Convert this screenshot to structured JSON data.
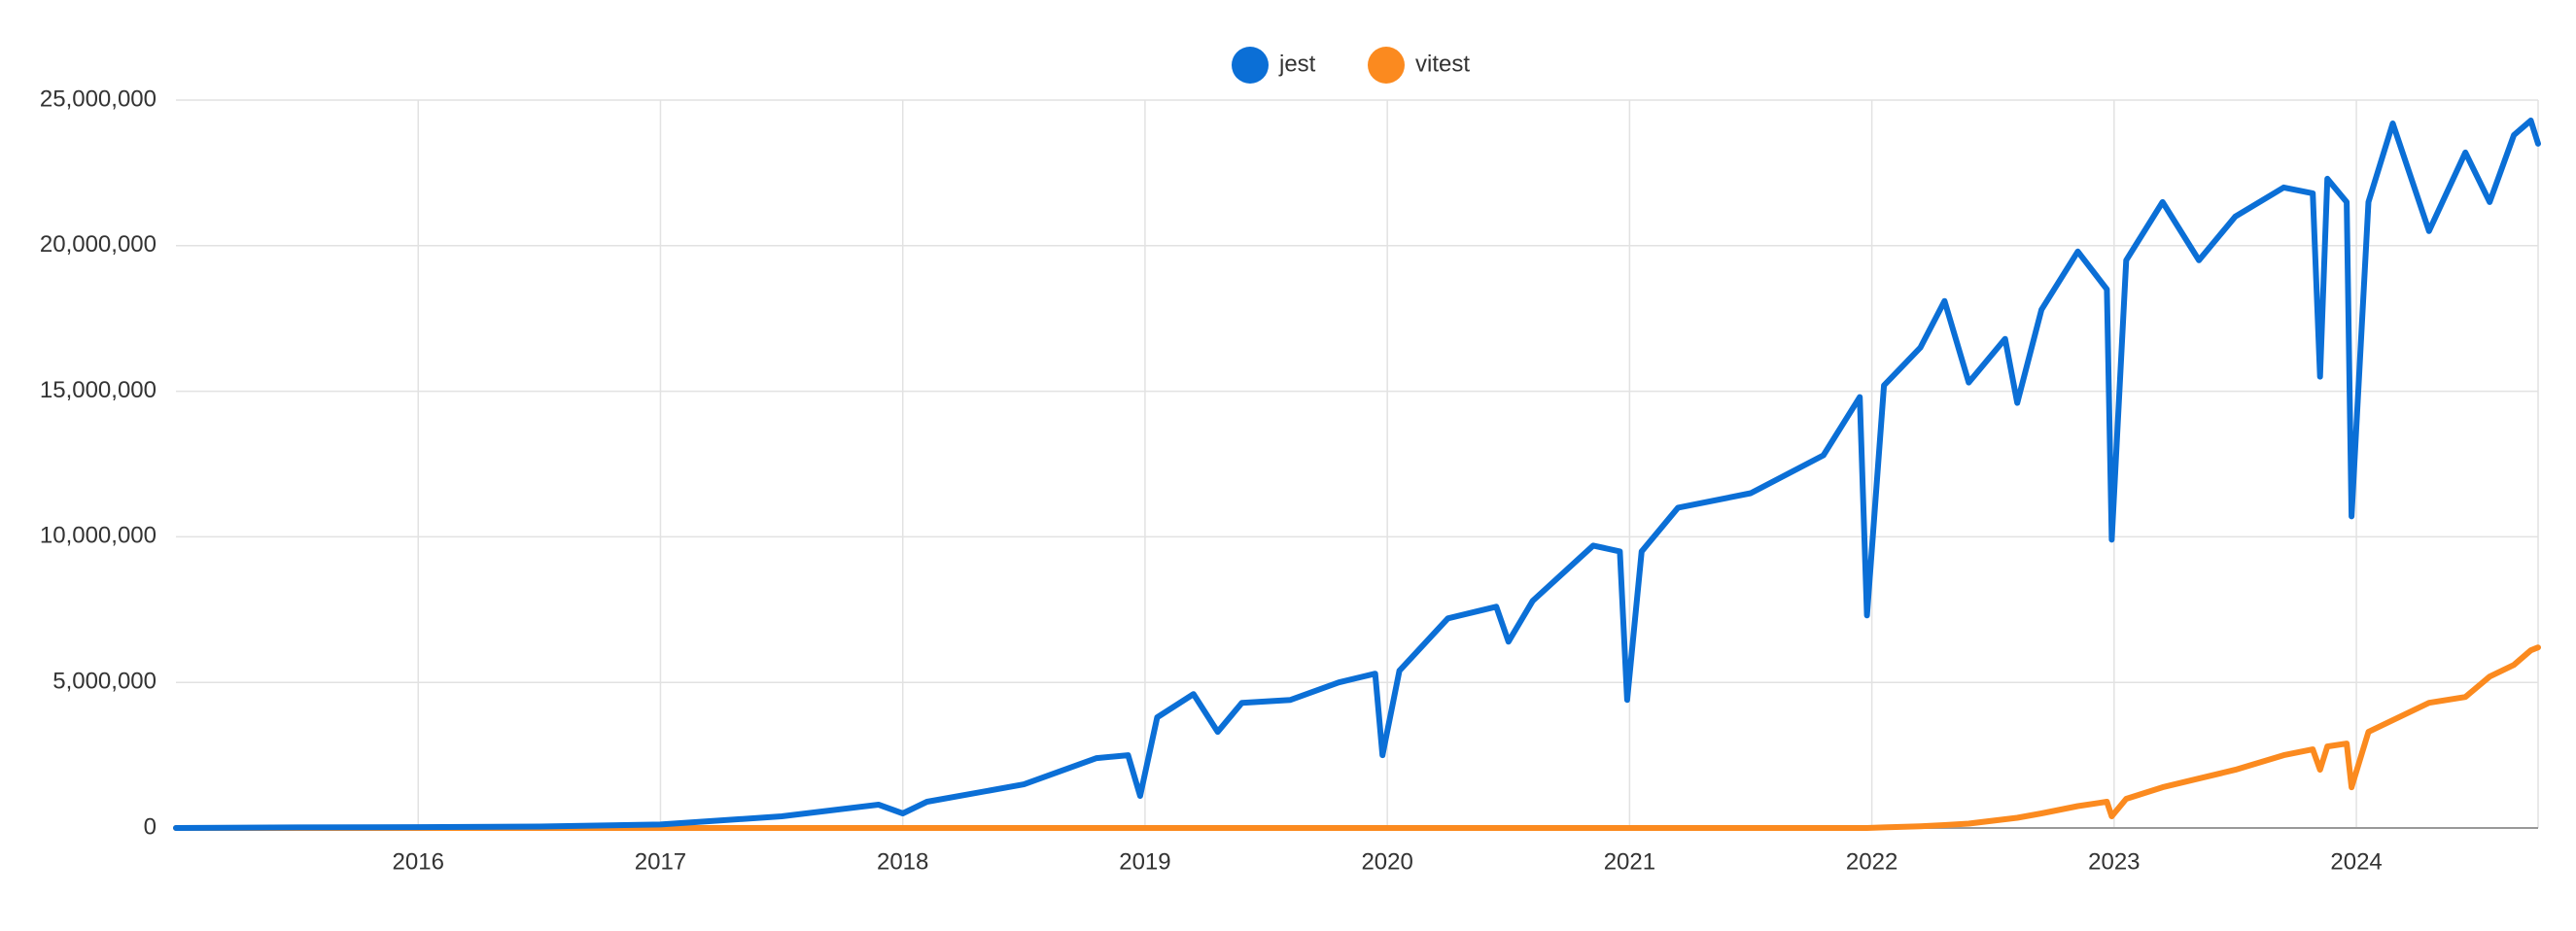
{
  "chart_data": {
    "type": "line",
    "x": [
      2015.0,
      2015.5,
      2016.0,
      2016.5,
      2017.0,
      2017.5,
      2017.9,
      2018.0,
      2018.1,
      2018.5,
      2018.8,
      2018.93,
      2018.98,
      2019.05,
      2019.2,
      2019.3,
      2019.4,
      2019.6,
      2019.8,
      2019.95,
      2019.98,
      2020.05,
      2020.25,
      2020.45,
      2020.5,
      2020.6,
      2020.85,
      2020.96,
      2020.99,
      2021.05,
      2021.2,
      2021.5,
      2021.8,
      2021.95,
      2021.98,
      2022.05,
      2022.2,
      2022.3,
      2022.4,
      2022.55,
      2022.6,
      2022.7,
      2022.85,
      2022.97,
      2022.99,
      2023.05,
      2023.2,
      2023.35,
      2023.5,
      2023.7,
      2023.82,
      2023.85,
      2023.88,
      2023.96,
      2023.98,
      2024.05,
      2024.15,
      2024.3,
      2024.45,
      2024.55,
      2024.65,
      2024.72,
      2024.75
    ],
    "series": [
      {
        "name": "jest",
        "color": "#0b6fd6",
        "values": [
          0,
          20000,
          30000,
          50000,
          120000,
          400000,
          800000,
          500000,
          900000,
          1500000,
          2400000,
          2500000,
          1100000,
          3800000,
          4600000,
          3300000,
          4300000,
          4400000,
          5000000,
          5300000,
          2500000,
          5400000,
          7200000,
          7600000,
          6400000,
          7800000,
          9700000,
          9500000,
          4400000,
          9500000,
          11000000,
          11500000,
          12800000,
          14800000,
          7300000,
          15200000,
          16500000,
          18100000,
          15300000,
          16800000,
          14600000,
          17800000,
          19800000,
          18500000,
          9900000,
          19500000,
          21500000,
          19500000,
          21000000,
          22000000,
          21800000,
          15500000,
          22300000,
          21500000,
          10700000,
          21500000,
          24200000,
          20500000,
          23200000,
          21500000,
          23800000,
          24300000,
          23500000
        ]
      },
      {
        "name": "vitest",
        "color": "#fb8a1f",
        "values": [
          0,
          0,
          0,
          0,
          0,
          0,
          0,
          0,
          0,
          0,
          0,
          0,
          0,
          0,
          0,
          0,
          0,
          0,
          0,
          0,
          0,
          0,
          0,
          0,
          0,
          0,
          0,
          0,
          0,
          0,
          0,
          0,
          0,
          0,
          0,
          20000,
          60000,
          100000,
          150000,
          300000,
          350000,
          500000,
          750000,
          900000,
          400000,
          1000000,
          1400000,
          1700000,
          2000000,
          2500000,
          2700000,
          2000000,
          2800000,
          2900000,
          1400000,
          3300000,
          3700000,
          4300000,
          4500000,
          5200000,
          5600000,
          6100000,
          6200000
        ]
      }
    ],
    "xlim": [
      2015.0,
      2024.75
    ],
    "xticks": [
      2016,
      2017,
      2018,
      2019,
      2020,
      2021,
      2022,
      2023,
      2024
    ],
    "ylim": [
      0,
      25000000
    ],
    "yticks": [
      0,
      {
        "value": 5000000,
        "label": "5,000,000"
      },
      {
        "value": 10000000,
        "label": "10,000,000"
      },
      {
        "value": 15000000,
        "label": "15,000,000"
      },
      {
        "value": 20000000,
        "label": "20,000,000"
      },
      {
        "value": 25000000,
        "label": "25,000,000"
      }
    ],
    "grid": true,
    "legend": "top"
  }
}
